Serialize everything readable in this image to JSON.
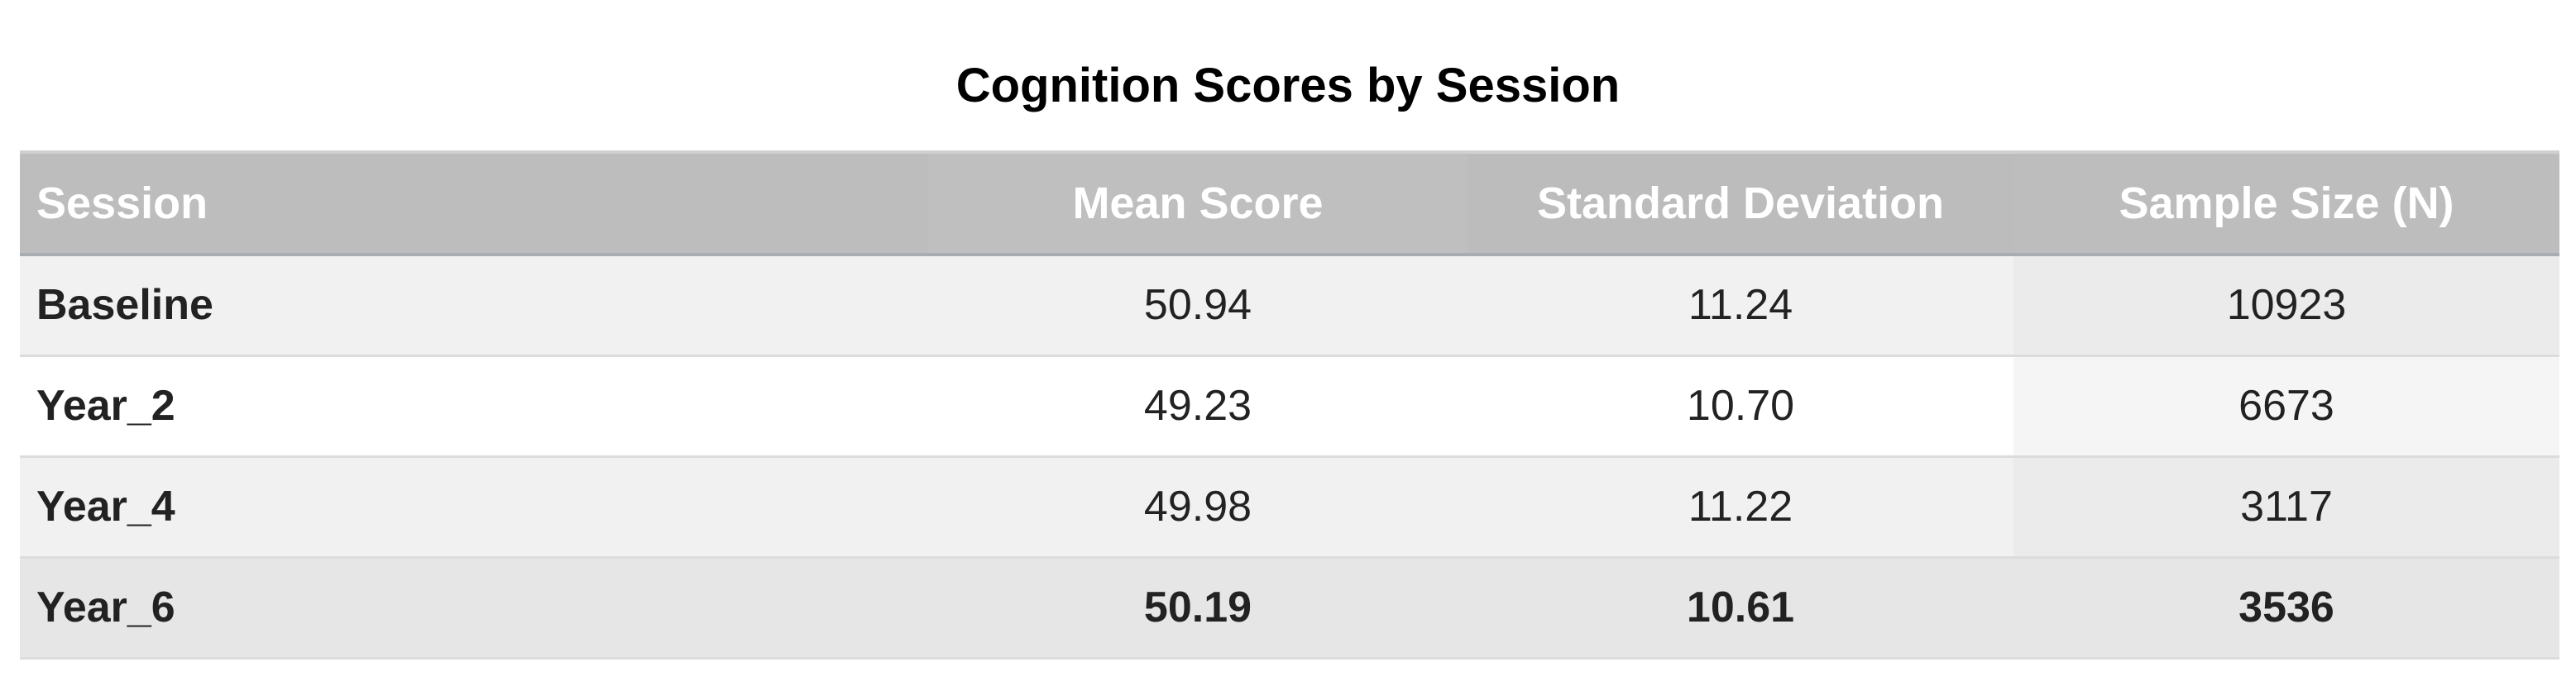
{
  "chart_data": {
    "type": "table",
    "title": "Cognition Scores by Session",
    "columns": [
      "Session",
      "Mean Score",
      "Standard Deviation",
      "Sample Size (N)"
    ],
    "rows": [
      {
        "session": "Baseline",
        "mean": "50.94",
        "sd": "11.24",
        "n": "10923"
      },
      {
        "session": "Year_2",
        "mean": "49.23",
        "sd": "10.70",
        "n": "6673"
      },
      {
        "session": "Year_4",
        "mean": "49.98",
        "sd": "11.22",
        "n": "3117"
      },
      {
        "session": "Year_6",
        "mean": "50.19",
        "sd": "10.61",
        "n": "3536"
      }
    ],
    "colors": {
      "header_bg": "#bdbdbd",
      "header_text": "#ffffff",
      "row_alt": "#f1f1f1",
      "row_plain": "#ffffff",
      "last_row_bg": "#e6e6e6"
    }
  }
}
